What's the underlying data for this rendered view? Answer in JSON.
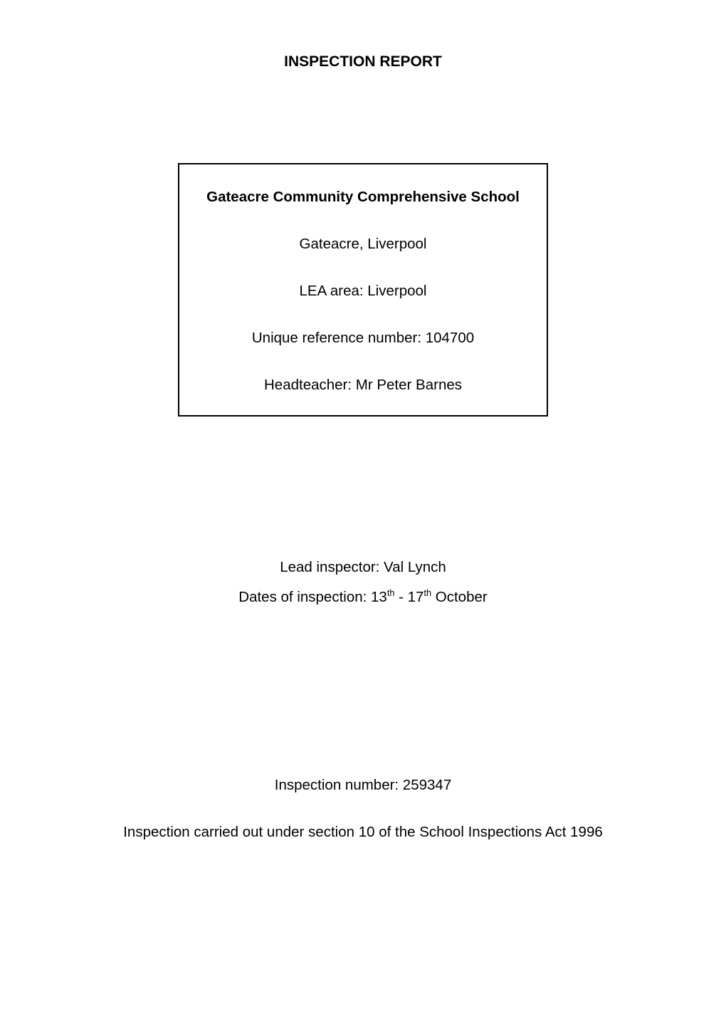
{
  "report_title": "INSPECTION REPORT",
  "info_box": {
    "school_name": "Gateacre Community Comprehensive School",
    "location": "Gateacre, Liverpool",
    "lea_area": "LEA area: Liverpool",
    "urn": "Unique reference number: 104700",
    "headteacher": "Headteacher: Mr Peter Barnes"
  },
  "lead_inspector": "Lead inspector: Val Lynch",
  "dates_prefix": "Dates of inspection: 13",
  "dates_sup1": "th",
  "dates_mid": " - 17",
  "dates_sup2": "th",
  "dates_suffix": " October",
  "inspection_number": "Inspection number: 259347",
  "carried_out": "Inspection carried out under section 10 of the School Inspections Act 1996",
  "colors": {
    "text": "#000000",
    "background": "#ffffff",
    "border": "#000000"
  },
  "typography": {
    "font_family": "Arial, Helvetica, sans-serif",
    "body_fontsize_pt": 15,
    "title_fontsize_pt": 15,
    "title_fontweight": "bold",
    "box_heading_fontweight": "bold"
  }
}
